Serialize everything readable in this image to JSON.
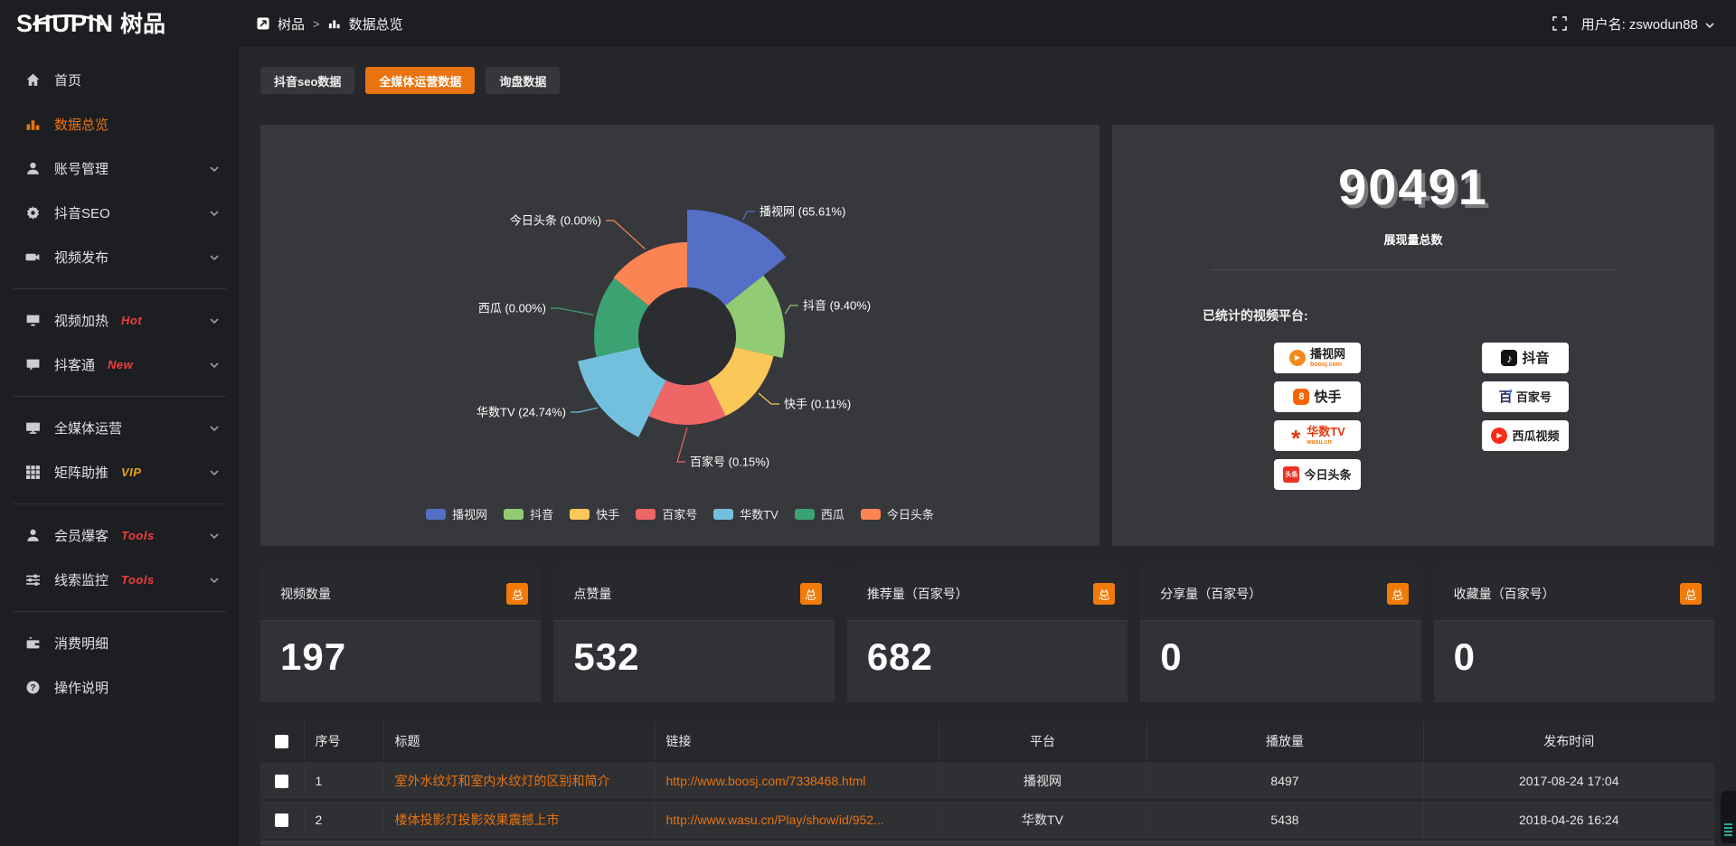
{
  "brand": {
    "name": "SHUPIN",
    "suffix": "树品"
  },
  "header": {
    "breadcrumb": {
      "root": "树品",
      "separator": ">",
      "current": "数据总览"
    },
    "user": "用户名: zswodun88"
  },
  "sidebar": {
    "items": [
      {
        "label": "首页"
      },
      {
        "label": "数据总览"
      },
      {
        "label": "账号管理"
      },
      {
        "label": "抖音SEO"
      },
      {
        "label": "视频发布"
      },
      {
        "label": "视频加热",
        "badge": "Hot"
      },
      {
        "label": "抖客通",
        "badge": "New"
      },
      {
        "label": "全媒体运营"
      },
      {
        "label": "矩阵助推",
        "badge": "VIP"
      },
      {
        "label": "会员爆客",
        "badge": "Tools"
      },
      {
        "label": "线索监控",
        "badge": "Tools"
      },
      {
        "label": "消费明细"
      },
      {
        "label": "操作说明"
      }
    ]
  },
  "tabs": [
    {
      "label": "抖音seo数据",
      "active": false
    },
    {
      "label": "全媒体运营数据",
      "active": true
    },
    {
      "label": "询盘数据",
      "active": false
    }
  ],
  "chart_data": {
    "type": "pie",
    "rose": true,
    "title": "",
    "legend_position": "bottom",
    "series": [
      {
        "name": "播视网",
        "pct": 65.61,
        "color": "#5470c6",
        "label": "播视网 (65.61%)"
      },
      {
        "name": "抖音",
        "pct": 9.4,
        "color": "#91cc75",
        "label": "抖音 (9.40%)"
      },
      {
        "name": "快手",
        "pct": 0.11,
        "color": "#fac858",
        "label": "快手 (0.11%)"
      },
      {
        "name": "百家号",
        "pct": 0.15,
        "color": "#ee6666",
        "label": "百家号 (0.15%)"
      },
      {
        "name": "华数TV",
        "pct": 24.74,
        "color": "#73c0de",
        "label": "华数TV (24.74%)"
      },
      {
        "name": "西瓜",
        "pct": 0.0,
        "color": "#3ba272",
        "label": "西瓜 (0.00%)"
      },
      {
        "name": "今日头条",
        "pct": 0.0,
        "color": "#fc8452",
        "label": "今日头条 (0.00%)"
      }
    ]
  },
  "summary": {
    "total": "90491",
    "total_label": "展现量总数",
    "platforms_label": "已统计的视频平台:",
    "platforms": [
      {
        "name": "播视网",
        "sub": "boosj.com"
      },
      {
        "name": "抖音"
      },
      {
        "name": "快手"
      },
      {
        "name": "百家号"
      },
      {
        "name": "华数TV",
        "sub": "wasu.cn"
      },
      {
        "name": "西瓜视频"
      },
      {
        "name": "今日头条"
      }
    ]
  },
  "stat_cards": [
    {
      "title": "视频数量",
      "badge": "总",
      "value": "197"
    },
    {
      "title": "点赞量",
      "badge": "总",
      "value": "532"
    },
    {
      "title": "推荐量（百家号）",
      "badge": "总",
      "value": "682"
    },
    {
      "title": "分享量（百家号）",
      "badge": "总",
      "value": "0"
    },
    {
      "title": "收藏量（百家号）",
      "badge": "总",
      "value": "0"
    }
  ],
  "table": {
    "headers": [
      "序号",
      "标题",
      "链接",
      "平台",
      "播放量",
      "发布时间"
    ],
    "rows": [
      {
        "no": "1",
        "title": "室外水纹灯和室内水纹灯的区别和简介",
        "link": "http://www.boosj.com/7338468.html",
        "platform": "播视网",
        "plays": "8497",
        "time": "2017-08-24 17:04"
      },
      {
        "no": "2",
        "title": "楼体投影灯投影效果震撼上市",
        "link": "http://www.wasu.cn/Play/show/id/952...",
        "platform": "华数TV",
        "plays": "5438",
        "time": "2018-04-26 16:24"
      }
    ]
  },
  "colors": {
    "accent": "#e8730f",
    "badge_red": "#f23d3d",
    "badge_gold": "#e3a21a",
    "link": "#e8730f"
  }
}
